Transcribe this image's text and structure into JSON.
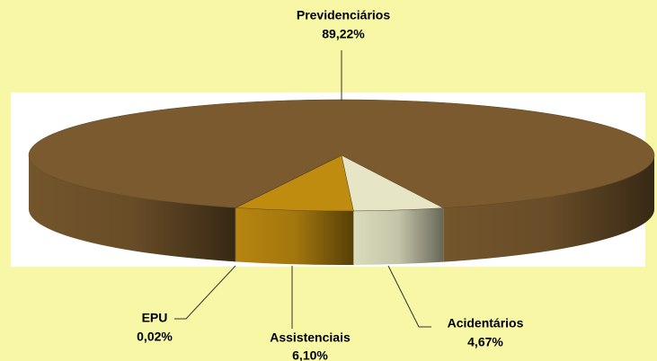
{
  "chart_data": {
    "type": "pie",
    "categories": [
      "Previdenciários",
      "Acidentários",
      "Assistenciais",
      "EPU"
    ],
    "values": [
      89.22,
      4.67,
      6.1,
      0.02
    ],
    "value_labels": [
      "89,22%",
      "4,67%",
      "6,10%",
      "0,02%"
    ],
    "colors": [
      "#7a5a2e",
      "#e6e6c6",
      "#c08c10",
      "#a07030"
    ]
  }
}
